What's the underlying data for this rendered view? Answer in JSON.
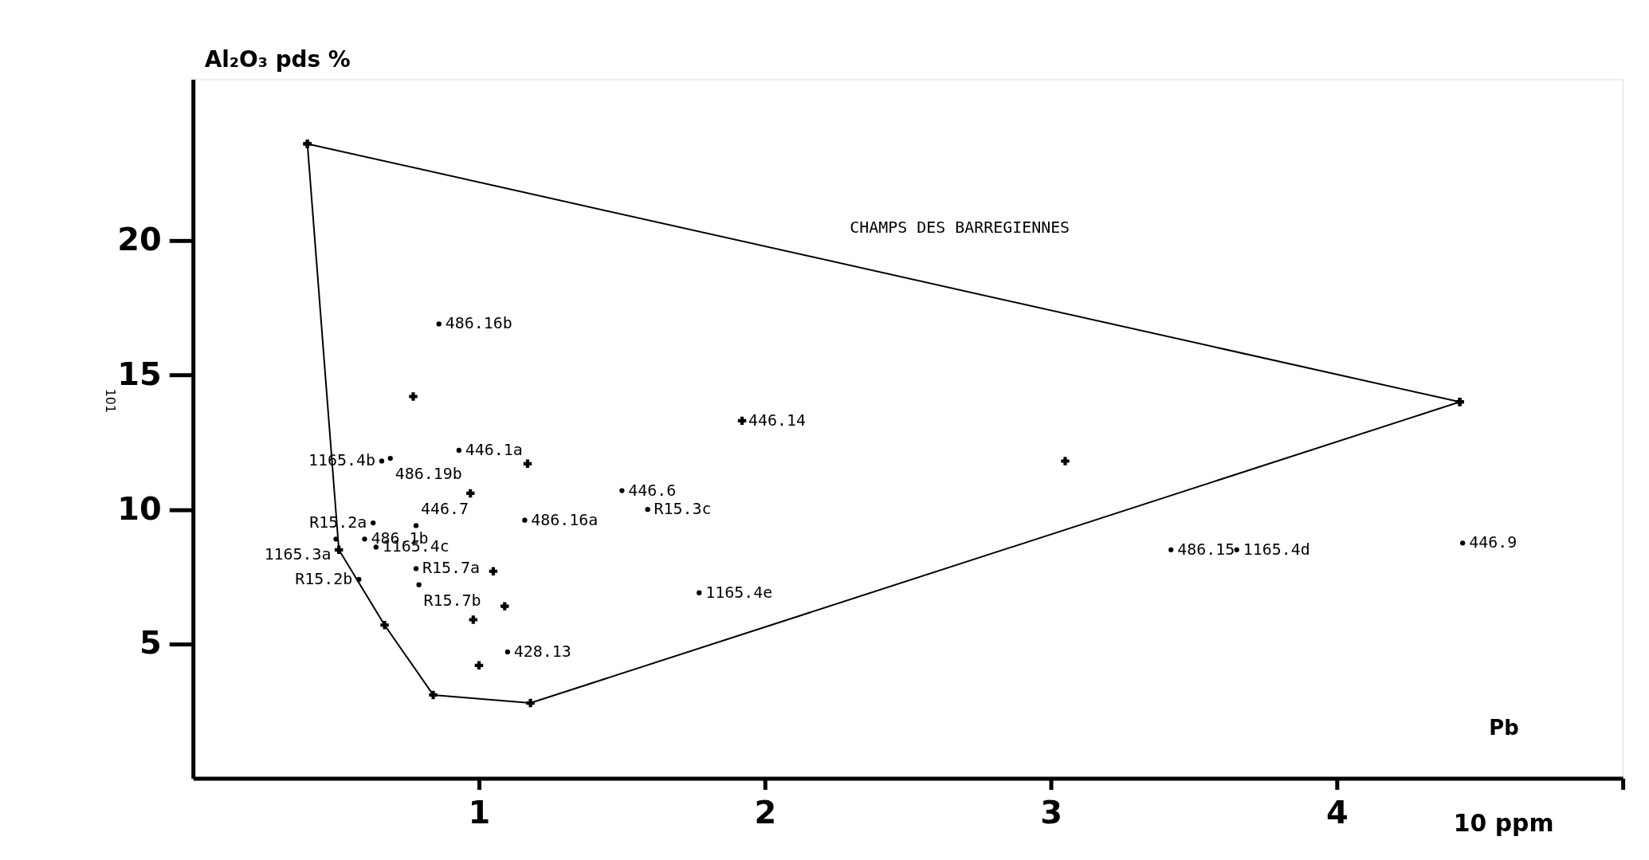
{
  "chart_data": {
    "type": "scatter",
    "xlabel": "Pb",
    "ylabel": "Al₂O₃ pds %",
    "xlim": [
      0,
      5
    ],
    "ylim": [
      0,
      26
    ],
    "xticks": [
      1,
      2,
      3,
      4,
      {
        "value": 5,
        "label": null
      }
    ],
    "yticks": [
      5,
      10,
      15,
      20
    ],
    "grid": false,
    "series": [
      {
        "name": "CHAMPS DES BARREGIENNES",
        "type": "line",
        "marker": "cross",
        "color": "#000000",
        "x": [
          0.4,
          4.43
        ],
        "values": [
          23.6,
          14.0
        ]
      },
      {
        "type": "line",
        "marker": "cross",
        "color": "#000000",
        "x": [
          0.4,
          0.51,
          0.67,
          0.84,
          1.18,
          4.43
        ],
        "values": [
          23.6,
          8.5,
          5.7,
          3.1,
          2.8,
          14.0
        ]
      },
      {
        "marker": "circle",
        "color": "#000000",
        "x": [
          0.86,
          0.93,
          0.66,
          0.69,
          1.5,
          1.59,
          0.63,
          0.6,
          0.5,
          0.78,
          1.16,
          0.78,
          0.79,
          0.58,
          0.64,
          1.77,
          1.1,
          3.42,
          3.65,
          4.44
        ],
        "values": [
          16.9,
          12.2,
          11.8,
          11.9,
          10.7,
          10.0,
          9.5,
          8.9,
          8.9,
          9.4,
          9.6,
          7.8,
          7.2,
          7.4,
          8.6,
          6.9,
          4.7,
          8.5,
          8.5,
          8.75
        ]
      },
      {
        "marker": "cross",
        "color": "#000000",
        "x": [
          0.77,
          0.97,
          1.17,
          1.05,
          1.09,
          0.98,
          1.0,
          1.92,
          3.05
        ],
        "values": [
          14.2,
          10.6,
          11.7,
          7.7,
          6.4,
          5.9,
          4.2,
          13.3,
          11.8
        ]
      }
    ],
    "annotations": [
      "10 ppm",
      "101",
      {
        "text": "486.16b",
        "x": 0.86,
        "y": 16.9
      },
      {
        "text": "446.1a",
        "x": 0.93,
        "y": 12.2
      },
      {
        "text": "1165.4b",
        "x": 0.66,
        "y": 11.8
      },
      {
        "text": "486.19b",
        "x": 0.69,
        "y": 11.9
      },
      {
        "text": "446.6",
        "x": 1.5,
        "y": 10.7
      },
      {
        "text": "R15.3c",
        "x": 1.59,
        "y": 10.0
      },
      {
        "text": "R15.2a",
        "x": 0.63,
        "y": 9.5
      },
      {
        "text": "486.1b",
        "x": 0.6,
        "y": 8.9
      },
      {
        "text": "1165.3a",
        "x": 0.5,
        "y": 8.9
      },
      {
        "text": "446.7",
        "x": 0.78,
        "y": 9.4
      },
      {
        "text": "486.16a",
        "x": 1.16,
        "y": 9.6
      },
      {
        "text": "R15.7a",
        "x": 0.78,
        "y": 7.8
      },
      {
        "text": "R15.7b",
        "x": 0.79,
        "y": 7.2
      },
      {
        "text": "R15.2b",
        "x": 0.58,
        "y": 7.4
      },
      {
        "text": "1165.4c",
        "x": 0.64,
        "y": 8.6
      },
      {
        "text": "1165.4e",
        "x": 1.77,
        "y": 6.9
      },
      {
        "text": "428.13",
        "x": 1.1,
        "y": 4.7
      },
      {
        "text": "446.14",
        "x": 1.92,
        "y": 13.3
      },
      {
        "text": "486.15",
        "x": 3.42,
        "y": 8.5
      },
      {
        "text": "1165.4d",
        "x": 3.65,
        "y": 8.5
      },
      {
        "text": "446.9",
        "x": 4.44,
        "y": 8.75
      }
    ]
  }
}
